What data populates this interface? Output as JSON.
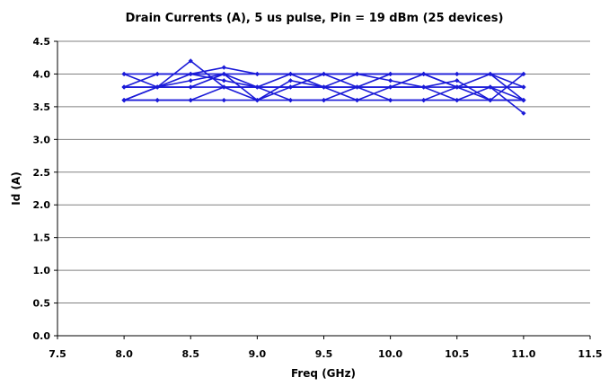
{
  "chart_data": {
    "type": "line",
    "title": "Drain Currents (A), 5 us pulse, Pin = 19 dBm (25 devices)",
    "xlabel": "Freq (GHz)",
    "ylabel": "Id (A)",
    "xlim": [
      7.5,
      11.5
    ],
    "ylim": [
      0,
      4.5
    ],
    "xticks": [
      "7.5",
      "8.0",
      "8.5",
      "9.0",
      "9.5",
      "10.0",
      "10.5",
      "11.0",
      "11.5"
    ],
    "yticks": [
      "0.0",
      "0.5",
      "1.0",
      "1.5",
      "2.0",
      "2.5",
      "3.0",
      "3.5",
      "4.0",
      "4.5"
    ],
    "grid": true,
    "legend": "none",
    "x": [
      8.0,
      8.25,
      8.5,
      8.75,
      9.0,
      9.25,
      9.5,
      9.75,
      10.0,
      10.25,
      10.5,
      10.75,
      11.0
    ],
    "series": [
      {
        "values": [
          4.0,
          3.8,
          4.2,
          3.8,
          3.8,
          4.0,
          3.8,
          3.8,
          4.0,
          4.0,
          3.8,
          4.0,
          3.8
        ]
      },
      {
        "values": [
          3.8,
          4.0,
          4.0,
          4.1,
          4.0,
          4.0,
          4.0,
          4.0,
          4.0,
          4.0,
          4.0,
          4.0,
          3.6
        ]
      },
      {
        "values": [
          3.6,
          3.8,
          3.8,
          3.8,
          3.6,
          3.8,
          3.8,
          3.6,
          3.8,
          3.8,
          3.6,
          3.8,
          3.4
        ]
      },
      {
        "values": [
          3.6,
          3.6,
          3.6,
          3.8,
          3.8,
          3.6,
          3.6,
          3.8,
          3.6,
          3.6,
          3.8,
          3.8,
          3.6
        ]
      },
      {
        "values": [
          3.8,
          3.8,
          4.0,
          3.9,
          3.8,
          3.8,
          4.0,
          3.8,
          3.8,
          4.0,
          3.8,
          3.6,
          4.0
        ]
      },
      {
        "values": [
          3.6,
          3.8,
          3.9,
          4.0,
          3.6,
          3.9,
          3.8,
          4.0,
          3.9,
          3.8,
          3.9,
          3.6,
          3.6
        ]
      },
      {
        "values": [
          3.8,
          3.8,
          3.8,
          4.0,
          3.8,
          3.8,
          3.8,
          3.8,
          3.8,
          3.8,
          3.8,
          3.8,
          3.8
        ]
      },
      {
        "values": [
          3.6,
          3.6,
          3.6,
          3.6,
          3.6,
          3.6,
          3.6,
          3.6,
          3.6,
          3.6,
          3.6,
          3.6,
          3.6
        ]
      },
      {
        "values": [
          4.0,
          4.0,
          4.0,
          4.0,
          4.0,
          4.0,
          4.0,
          4.0,
          4.0,
          4.0,
          4.0,
          4.0,
          4.0
        ]
      }
    ]
  },
  "colors": {
    "series": "#1a1ad8",
    "grid": "#808080",
    "axis": "#000000",
    "background": "#ffffff"
  }
}
